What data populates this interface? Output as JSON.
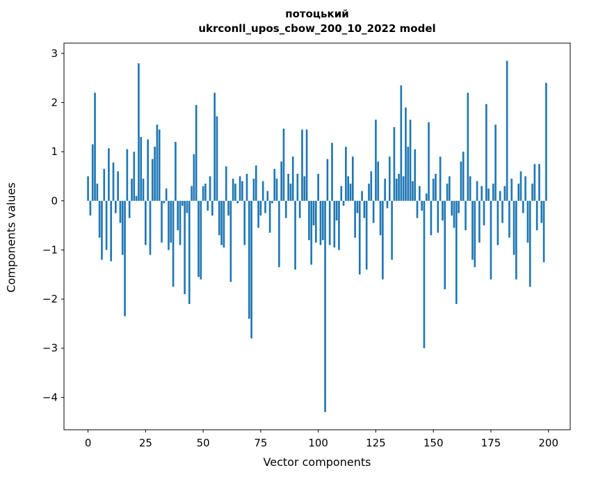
{
  "figure": {
    "title_line1": "потоцький",
    "title_line2": "ukrconll_upos_cbow_200_10_2022 model",
    "xlabel": "Vector components",
    "ylabel": "Components values"
  },
  "chart_data": {
    "type": "bar",
    "title": "потоцький\nukrconll_upos_cbow_200_10_2022 model",
    "xlabel": "Vector components",
    "ylabel": "Components values",
    "legend": "none",
    "grid": false,
    "bar_color": "#1f77b4",
    "frame_color": "#000000",
    "x_ticks": [
      0,
      25,
      50,
      75,
      100,
      125,
      150,
      175,
      200
    ],
    "y_ticks": [
      3,
      2,
      1,
      0,
      -1,
      -2,
      -3,
      -4
    ],
    "xlim": [
      -10.45,
      209.45
    ],
    "ylim": [
      -4.66,
      3.21
    ],
    "x_is_index": true,
    "values": [
      0.5,
      -0.3,
      1.15,
      2.2,
      0.35,
      -0.75,
      -1.2,
      0.65,
      -1.0,
      1.07,
      -1.23,
      0.78,
      -0.25,
      0.6,
      -0.45,
      -1.1,
      -2.35,
      1.05,
      -0.35,
      0.45,
      1.0,
      0.1,
      2.8,
      1.3,
      0.45,
      -0.9,
      1.25,
      -1.1,
      0.85,
      1.1,
      1.55,
      1.45,
      -0.85,
      -0.05,
      0.25,
      -1.0,
      -0.85,
      -1.75,
      1.2,
      -0.6,
      -0.9,
      -0.1,
      -1.9,
      -0.25,
      -2.1,
      0.3,
      0.95,
      1.95,
      -1.55,
      -1.6,
      0.3,
      0.35,
      -0.2,
      0.5,
      -0.3,
      2.2,
      1.72,
      -0.7,
      -0.9,
      -0.95,
      0.7,
      -0.3,
      -1.65,
      0.45,
      0.35,
      -0.05,
      0.5,
      0.4,
      -0.9,
      0.55,
      -2.4,
      -2.8,
      0.45,
      0.72,
      -0.55,
      -0.3,
      0.4,
      -0.25,
      0.2,
      -0.65,
      -0.05,
      0.65,
      0.45,
      -1.35,
      0.8,
      1.47,
      -0.35,
      0.55,
      0.35,
      0.9,
      -1.4,
      0.55,
      -0.35,
      1.45,
      0.5,
      1.45,
      -0.8,
      -1.3,
      -0.5,
      -0.85,
      0.55,
      -0.9,
      -0.8,
      -4.3,
      0.85,
      -0.9,
      1.18,
      -0.95,
      -0.4,
      -1.0,
      0.3,
      -0.1,
      1.1,
      0.5,
      0.35,
      0.9,
      -0.75,
      -0.25,
      -1.5,
      0.2,
      -0.35,
      -1.4,
      0.35,
      0.6,
      -0.45,
      1.65,
      0.8,
      -0.7,
      -1.6,
      0.45,
      -0.15,
      0.9,
      -1.2,
      1.5,
      0.45,
      0.55,
      2.35,
      0.5,
      1.9,
      1.1,
      1.65,
      0.4,
      1.05,
      -0.35,
      0.3,
      -0.2,
      -3.0,
      0.15,
      1.6,
      -0.7,
      0.45,
      0.55,
      -0.65,
      0.9,
      -0.4,
      -1.8,
      0.35,
      0.5,
      -0.3,
      -0.55,
      -2.1,
      -0.25,
      0.8,
      1.0,
      -0.6,
      2.2,
      0.5,
      -1.2,
      -1.35,
      0.4,
      -0.85,
      0.3,
      -0.5,
      1.97,
      0.25,
      -1.6,
      0.35,
      1.55,
      -0.9,
      0.2,
      -0.45,
      0.3,
      2.85,
      -0.75,
      0.45,
      -1.1,
      -1.6,
      0.35,
      0.6,
      -0.25,
      0.5,
      -0.85,
      -1.75,
      0.35,
      0.75,
      -0.6,
      0.75,
      -0.45,
      -1.25,
      2.4
    ]
  }
}
